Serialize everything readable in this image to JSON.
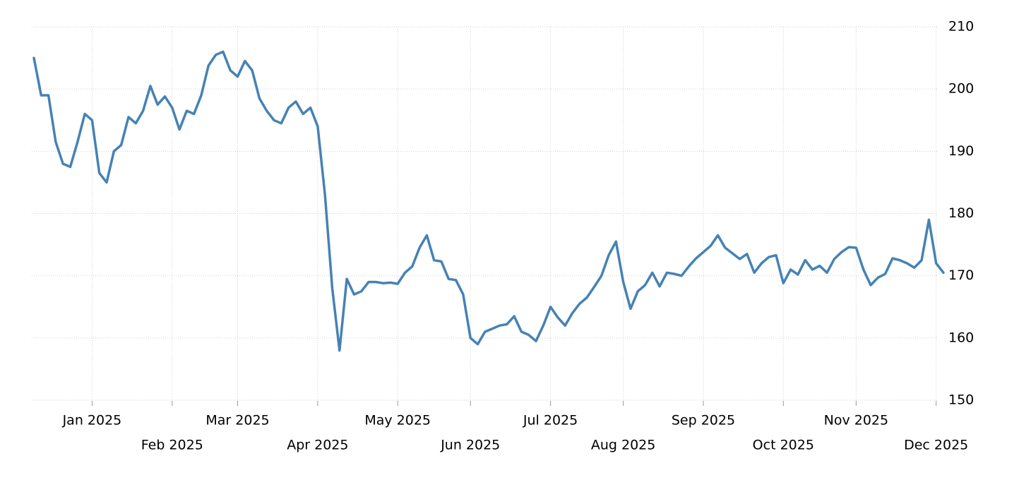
{
  "chart_data": {
    "type": "line",
    "categories": [
      null,
      null,
      null,
      null,
      null,
      null,
      null,
      null,
      "Jan 2025",
      null,
      null,
      null,
      null,
      null,
      null,
      null,
      null,
      null,
      null,
      "Feb 2025",
      null,
      null,
      null,
      null,
      null,
      null,
      null,
      null,
      "Mar 2025",
      null,
      null,
      null,
      null,
      null,
      null,
      null,
      null,
      null,
      null,
      "Apr 2025",
      null,
      null,
      null,
      null,
      null,
      null,
      null,
      null,
      null,
      null,
      "May 2025",
      null,
      null,
      null,
      null,
      null,
      null,
      null,
      null,
      null,
      "Jun 2025",
      null,
      null,
      null,
      null,
      null,
      null,
      null,
      null,
      null,
      null,
      "Jul 2025",
      null,
      null,
      null,
      null,
      null,
      null,
      null,
      null,
      null,
      "Aug 2025",
      null,
      null,
      null,
      null,
      null,
      null,
      null,
      null,
      null,
      null,
      "Sep 2025",
      null,
      null,
      null,
      null,
      null,
      null,
      null,
      null,
      null,
      null,
      "Oct 2025",
      null,
      null,
      null,
      null,
      null,
      null,
      null,
      null,
      null,
      "Nov 2025",
      null,
      null,
      null,
      null,
      null,
      null,
      null,
      null,
      null,
      null,
      "Dec 2025",
      null
    ],
    "series": [
      {
        "color": "#4682b4",
        "values": [
          205,
          199,
          199,
          191.5,
          188,
          187.5,
          191.5,
          196,
          195,
          186.5,
          185,
          190,
          191,
          195.5,
          194.5,
          196.5,
          200.5,
          197.5,
          198.8,
          197,
          193.5,
          196.5,
          196,
          199,
          203.8,
          205.5,
          206,
          203,
          202,
          204.5,
          203,
          198.5,
          196.5,
          195,
          194.5,
          197,
          198,
          196,
          197,
          194,
          183,
          168,
          158,
          169.5,
          167,
          167.5,
          169,
          169,
          168.8,
          168.9,
          168.7,
          170.5,
          171.5,
          174.5,
          176.5,
          172.5,
          172.3,
          169.5,
          169.3,
          167,
          160,
          159,
          161,
          161.5,
          162,
          162.2,
          163.5,
          161,
          160.5,
          159.5,
          162,
          165,
          163.3,
          162,
          164,
          165.5,
          166.5,
          168.2,
          170,
          173.3,
          175.5,
          169,
          164.7,
          167.5,
          168.5,
          170.5,
          168.3,
          170.5,
          170.3,
          170,
          171.5,
          172.8,
          173.8,
          174.8,
          176.5,
          174.5,
          173.6,
          172.7,
          173.5,
          170.5,
          172,
          173,
          173.3,
          168.8,
          171,
          170.2,
          172.5,
          171,
          171.6,
          170.5,
          172.7,
          173.8,
          174.6,
          174.5,
          171,
          168.5,
          169.7,
          170.3,
          172.8,
          172.5,
          172,
          171.3,
          172.5,
          179,
          172,
          170.5
        ]
      }
    ],
    "ylim": [
      150,
      210
    ],
    "yticks": [
      150,
      160,
      170,
      180,
      190,
      200,
      210
    ],
    "grid": true
  }
}
